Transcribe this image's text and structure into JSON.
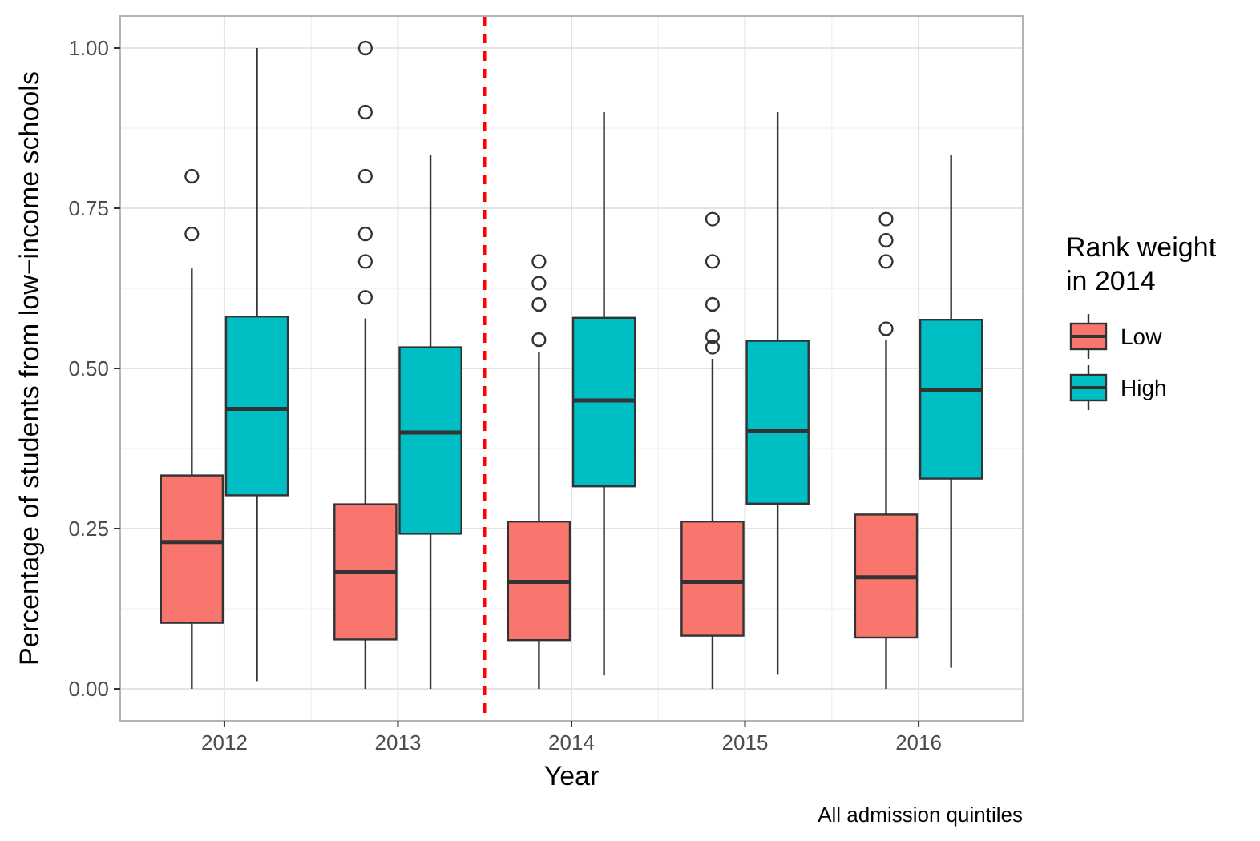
{
  "chart_data": {
    "type": "box",
    "xlabel": "Year",
    "ylabel": "Percentage of students from low−income schools",
    "legend_title": "Rank weight\nin 2014",
    "annotations": [
      "All admission quintiles"
    ],
    "x": [
      2012,
      2013,
      2014,
      2015,
      2016
    ],
    "xlim": [
      2011.4,
      2016.6
    ],
    "xticks": [
      2012,
      2013,
      2014,
      2015,
      2016
    ],
    "ylim": [
      -0.05,
      1.05
    ],
    "yticks": [
      {
        "value": 0,
        "label": "0.00"
      },
      {
        "value": 0.25,
        "label": "0.25"
      },
      {
        "value": 0.5,
        "label": "0.50"
      },
      {
        "value": 0.75,
        "label": "0.75"
      },
      {
        "value": 1,
        "label": "1.00"
      }
    ],
    "grid": true,
    "legend": "right",
    "ref_lines": [
      {
        "axis": "x",
        "value": 2013.5,
        "color": "#ff0000",
        "line_style": "dashed"
      }
    ],
    "series": [
      {
        "name": "Low",
        "color": "#f8766d",
        "boxes": [
          {
            "low": 0,
            "q1": 0.103,
            "median": 0.229,
            "q3": 0.333,
            "high": 0.656,
            "outliers": [
              0.71,
              0.8
            ]
          },
          {
            "low": 0,
            "q1": 0.077,
            "median": 0.182,
            "q3": 0.288,
            "high": 0.578,
            "outliers": [
              0.611,
              0.667,
              0.71,
              0.8,
              0.9,
              1.0
            ]
          },
          {
            "low": 0,
            "q1": 0.076,
            "median": 0.167,
            "q3": 0.261,
            "high": 0.525,
            "outliers": [
              0.545,
              0.6,
              0.633,
              0.667
            ]
          },
          {
            "low": 0,
            "q1": 0.083,
            "median": 0.167,
            "q3": 0.261,
            "high": 0.515,
            "outliers": [
              0.533,
              0.55,
              0.6,
              0.667,
              0.733
            ]
          },
          {
            "low": 0,
            "q1": 0.08,
            "median": 0.174,
            "q3": 0.272,
            "high": 0.545,
            "outliers": [
              0.562,
              0.667,
              0.7,
              0.733
            ]
          }
        ]
      },
      {
        "name": "High",
        "color": "#00bfc4",
        "boxes": [
          {
            "low": 0.012,
            "q1": 0.302,
            "median": 0.437,
            "q3": 0.581,
            "high": 1.0
          },
          {
            "low": 0,
            "q1": 0.242,
            "median": 0.4,
            "q3": 0.533,
            "high": 0.833
          },
          {
            "low": 0.021,
            "q1": 0.316,
            "median": 0.45,
            "q3": 0.579,
            "high": 0.9
          },
          {
            "low": 0.022,
            "q1": 0.289,
            "median": 0.402,
            "q3": 0.543,
            "high": 0.9
          },
          {
            "low": 0.033,
            "q1": 0.328,
            "median": 0.467,
            "q3": 0.576,
            "high": 0.833
          }
        ]
      }
    ]
  }
}
